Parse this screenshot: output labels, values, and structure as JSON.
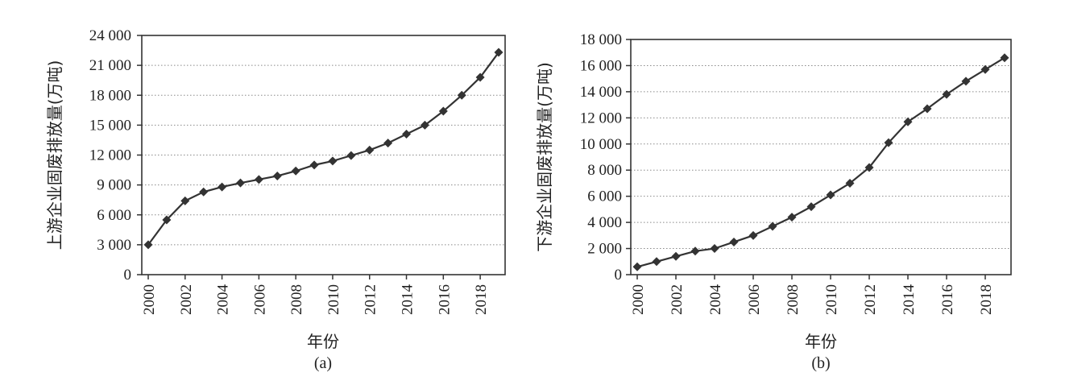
{
  "chart_data": [
    {
      "type": "line",
      "caption": "(a)",
      "xlabel": "年份",
      "ylabel": "上游企业固废排放量(万吨)",
      "ylim": [
        0,
        24000
      ],
      "yticks": [
        0,
        3000,
        6000,
        9000,
        12000,
        15000,
        18000,
        21000,
        24000
      ],
      "ytick_labels": [
        "0",
        "3 000",
        "6 000",
        "9 000",
        "12 000",
        "15 000",
        "18 000",
        "21 000",
        "24 000"
      ],
      "xlim": [
        2000,
        2019
      ],
      "xticks": [
        2000,
        2002,
        2004,
        2006,
        2008,
        2010,
        2012,
        2014,
        2016,
        2018
      ],
      "xtick_labels": [
        "2000",
        "2002",
        "2004",
        "2006",
        "2008",
        "2010",
        "2012",
        "2014",
        "2016",
        "2018"
      ],
      "grid": "horizontal dotted",
      "x": [
        2000,
        2001,
        2002,
        2003,
        2004,
        2005,
        2006,
        2007,
        2008,
        2009,
        2010,
        2011,
        2012,
        2013,
        2014,
        2015,
        2016,
        2017,
        2018,
        2019
      ],
      "values": [
        3000,
        5500,
        7400,
        8300,
        8800,
        9200,
        9550,
        9900,
        10400,
        11000,
        11400,
        11950,
        12500,
        13200,
        14100,
        15000,
        16400,
        18000,
        19800,
        22300
      ]
    },
    {
      "type": "line",
      "caption": "(b)",
      "xlabel": "年份",
      "ylabel": "下游企业固废排放量(万吨)",
      "ylim": [
        0,
        18000
      ],
      "yticks": [
        0,
        2000,
        4000,
        6000,
        8000,
        10000,
        12000,
        14000,
        16000,
        18000
      ],
      "ytick_labels": [
        "0",
        "2 000",
        "4 000",
        "6 000",
        "8 000",
        "10 000",
        "12 000",
        "14 000",
        "16 000",
        "18 000"
      ],
      "xlim": [
        2000,
        2019
      ],
      "xticks": [
        2000,
        2002,
        2004,
        2006,
        2008,
        2010,
        2012,
        2014,
        2016,
        2018
      ],
      "xtick_labels": [
        "2000",
        "2002",
        "2004",
        "2006",
        "2008",
        "2010",
        "2012",
        "2014",
        "2016",
        "2018"
      ],
      "grid": "horizontal dotted",
      "x": [
        2000,
        2001,
        2002,
        2003,
        2004,
        2005,
        2006,
        2007,
        2008,
        2009,
        2010,
        2011,
        2012,
        2013,
        2014,
        2015,
        2016,
        2017,
        2018,
        2019
      ],
      "values": [
        600,
        1000,
        1400,
        1800,
        2000,
        2500,
        3000,
        3700,
        4400,
        5200,
        6100,
        7000,
        8200,
        10100,
        11700,
        12700,
        13800,
        14800,
        15700,
        16600
      ]
    }
  ]
}
